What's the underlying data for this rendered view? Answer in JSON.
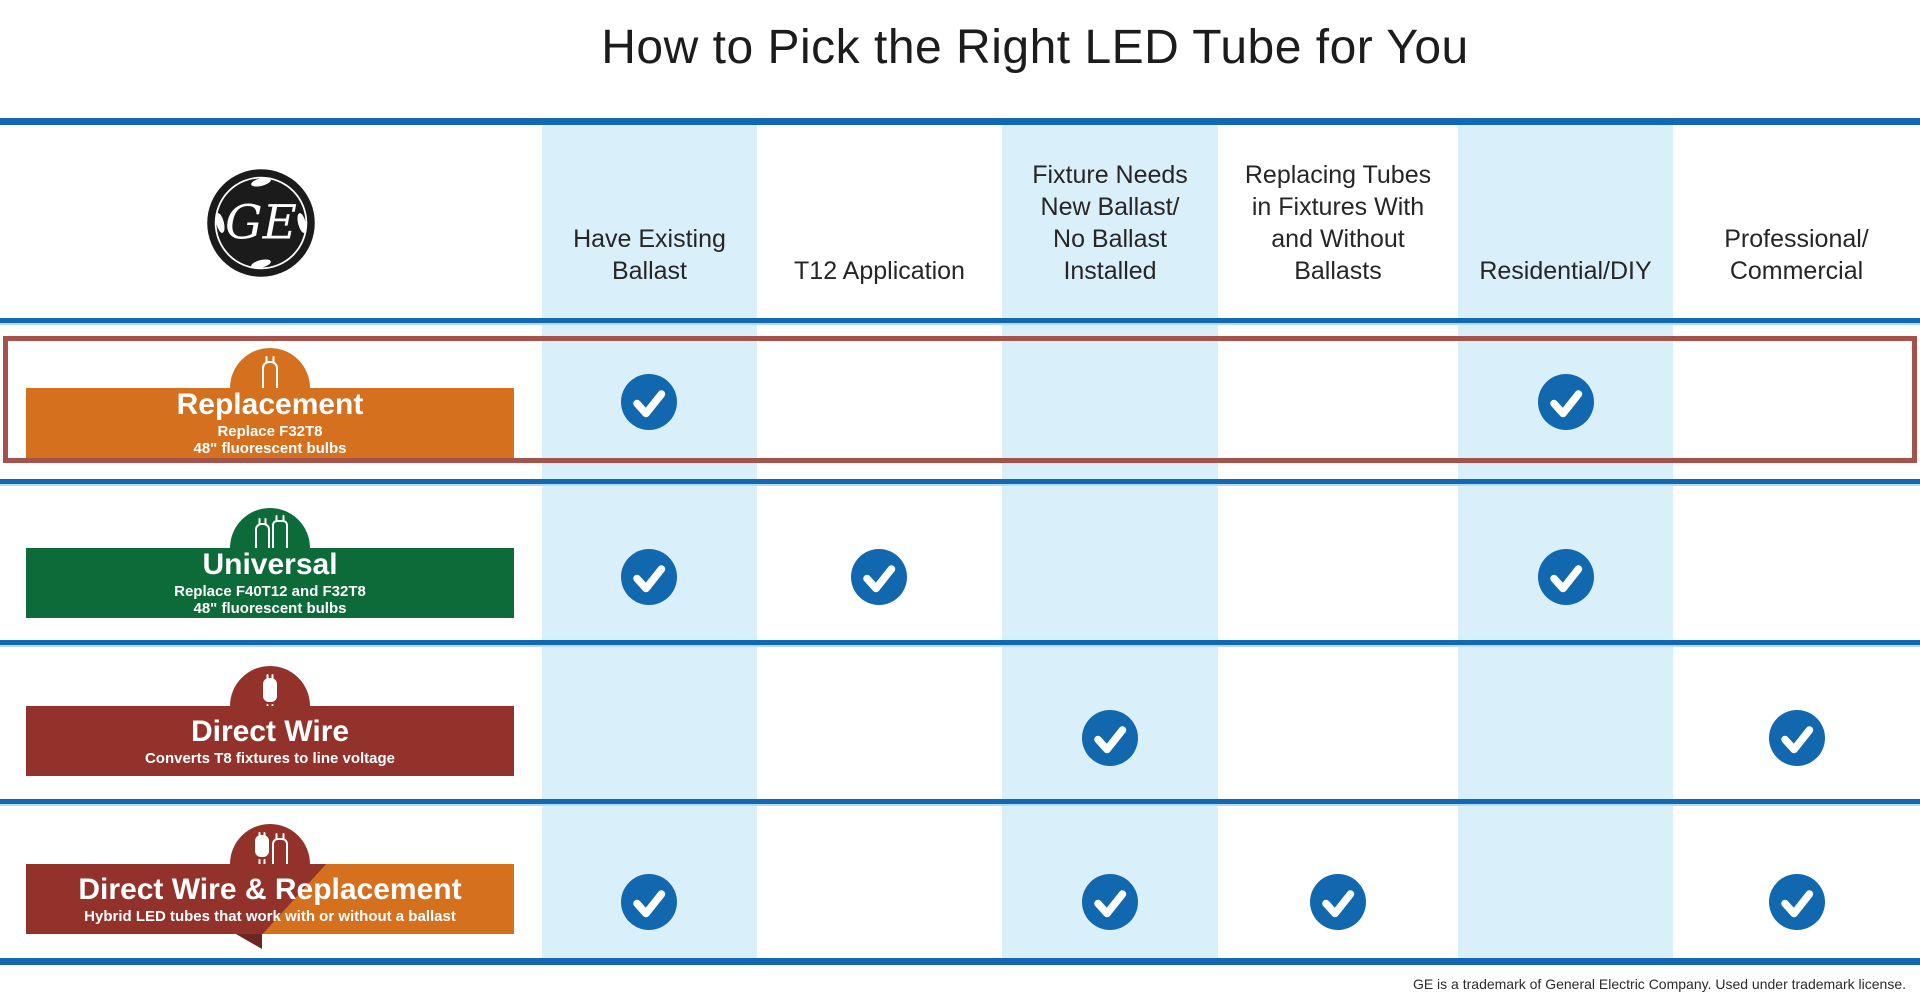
{
  "title": "How to Pick the Right LED Tube for You",
  "logo": {
    "label": "GE logo",
    "monogram_text": "GE"
  },
  "columns": [
    {
      "label": "Have Existing\nBallast"
    },
    {
      "label": "T12 Application"
    },
    {
      "label": "Fixture Needs\nNew Ballast/\nNo Ballast\nInstalled"
    },
    {
      "label": "Replacing Tubes\nin Fixtures With\nand Without\nBallasts"
    },
    {
      "label": "Residential/DIY"
    },
    {
      "label": "Professional/\nCommercial"
    }
  ],
  "rows": [
    {
      "title": "Replacement",
      "subtitle": "Replace F32T8\n48\" fluorescent bulbs",
      "icon": "led-tube-icon",
      "highlighted": true,
      "checks": [
        true,
        false,
        false,
        false,
        true,
        false
      ]
    },
    {
      "title": "Universal",
      "subtitle": "Replace F40T12 and F32T8\n48\" fluorescent bulbs",
      "icon": "two-led-tubes-icon",
      "highlighted": false,
      "checks": [
        true,
        true,
        false,
        false,
        true,
        false
      ]
    },
    {
      "title": "Direct Wire",
      "subtitle": "Converts T8 fixtures to line voltage",
      "icon": "direct-wire-tube-icon",
      "highlighted": false,
      "checks": [
        false,
        false,
        true,
        false,
        false,
        true
      ]
    },
    {
      "title": "Direct Wire & Replacement",
      "subtitle": "Hybrid LED tubes that work with or without a ballast",
      "icon": "hybrid-tubes-icon",
      "highlighted": false,
      "checks": [
        true,
        false,
        true,
        true,
        false,
        true
      ]
    }
  ],
  "footer": {
    "text": "GE is a trademark of General Electric Company. Used under trademark license."
  },
  "colors": {
    "accent_blue": "#1268B2",
    "light_blue_stripe": "#D9EFFA",
    "divider_light_blue": "#B5DCF2",
    "check_blue": "#1268AE",
    "orange": "#D5701F",
    "green": "#0C6B39",
    "dark_red": "#93322B",
    "highlight_border": "#A5524A",
    "title_text": "#1c1c1c"
  },
  "chart_data": {
    "type": "table",
    "title": "How to Pick the Right LED Tube for You",
    "columns": [
      "Have Existing Ballast",
      "T12 Application",
      "Fixture Needs New Ballast/No Ballast Installed",
      "Replacing Tubes in Fixtures With and Without Ballasts",
      "Residential/DIY",
      "Professional/Commercial"
    ],
    "rows": [
      {
        "name": "Replacement",
        "description": "Replace F32T8 48\" fluorescent bulbs",
        "values": [
          true,
          false,
          false,
          false,
          true,
          false
        ]
      },
      {
        "name": "Universal",
        "description": "Replace F40T12 and F32T8 48\" fluorescent bulbs",
        "values": [
          true,
          true,
          false,
          false,
          true,
          false
        ]
      },
      {
        "name": "Direct Wire",
        "description": "Converts T8 fixtures to line voltage",
        "values": [
          false,
          false,
          true,
          false,
          false,
          true
        ]
      },
      {
        "name": "Direct Wire & Replacement",
        "description": "Hybrid LED tubes that work with or without a ballast",
        "values": [
          true,
          false,
          true,
          true,
          false,
          true
        ]
      }
    ],
    "legend_position": "none",
    "grid": false
  }
}
